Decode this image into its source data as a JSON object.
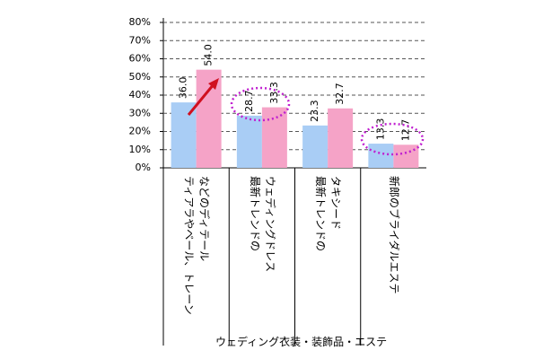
{
  "chart_data": {
    "type": "bar",
    "x_label": "ウェディング衣装・装飾品・エステ",
    "categories": [
      "ティアラやベール、トレーン\nなどのディテール",
      "最新トレンドの\nウェディングドレス",
      "最新トレンドの\nタキシード",
      "新郎のブライダルエステ"
    ],
    "series": [
      {
        "color": "#a9cdf5",
        "values": [
          36.0,
          28.7,
          23.3,
          13.3
        ],
        "value_labels": [
          "36.0",
          "28.7",
          "23.3",
          "13.3"
        ]
      },
      {
        "color": "#f5a3c7",
        "values": [
          54.0,
          33.3,
          32.7,
          12.7
        ],
        "value_labels": [
          "54.0",
          "33.3",
          "32.7",
          "12.7"
        ]
      }
    ],
    "ylim": [
      0,
      80
    ],
    "yticks": [
      {
        "value": 0,
        "label": "0%"
      },
      {
        "value": 10,
        "label": "10%"
      },
      {
        "value": 20,
        "label": "20%"
      },
      {
        "value": 30,
        "label": "30%"
      },
      {
        "value": 40,
        "label": "40%"
      },
      {
        "value": 50,
        "label": "50%"
      },
      {
        "value": 60,
        "label": "60%"
      },
      {
        "value": 70,
        "label": "70%"
      },
      {
        "value": 80,
        "label": "80%"
      }
    ],
    "grid": true
  }
}
